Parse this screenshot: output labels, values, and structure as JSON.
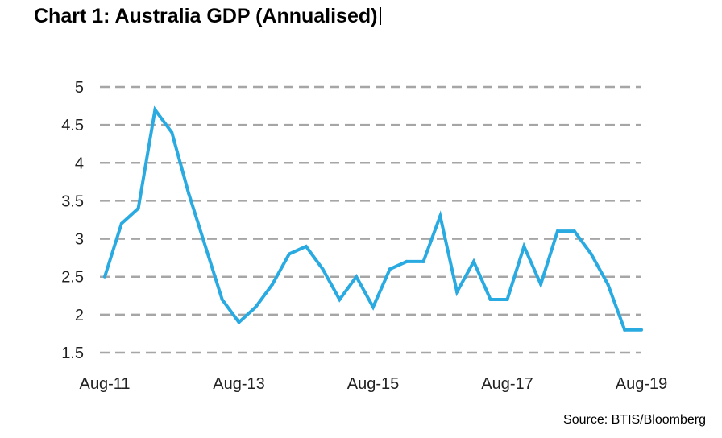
{
  "chart_data": {
    "type": "line",
    "title": "Chart 1: Australia GDP (Annualised)",
    "source": "Source: BTIS/Bloomberg",
    "xlabel": "",
    "ylabel": "",
    "ylim": [
      1.5,
      5
    ],
    "yticks": [
      "5",
      "4.5",
      "4",
      "3.5",
      "3",
      "2.5",
      "2",
      "1.5"
    ],
    "ytick_values": [
      5,
      4.5,
      4,
      3.5,
      3,
      2.5,
      2,
      1.5
    ],
    "xticks": [
      "Aug-11",
      "Aug-13",
      "Aug-15",
      "Aug-17",
      "Aug-19"
    ],
    "xtick_index": [
      0,
      8,
      16,
      24,
      32
    ],
    "grid": true,
    "grid_style": "dashed",
    "legend": "none",
    "colors": {
      "line": "#29aae1",
      "grid": "#a6a6a6",
      "text": "#222222"
    },
    "series": [
      {
        "values": [
          2.5,
          3.2,
          3.4,
          4.7,
          4.4,
          3.6,
          2.9,
          2.2,
          1.9,
          2.1,
          2.4,
          2.8,
          2.9,
          2.6,
          2.2,
          2.5,
          2.1,
          2.6,
          2.7,
          2.7,
          3.3,
          2.3,
          2.7,
          2.2,
          2.2,
          2.9,
          2.4,
          3.1,
          3.1,
          2.8,
          2.4,
          1.8,
          1.8
        ]
      }
    ]
  }
}
